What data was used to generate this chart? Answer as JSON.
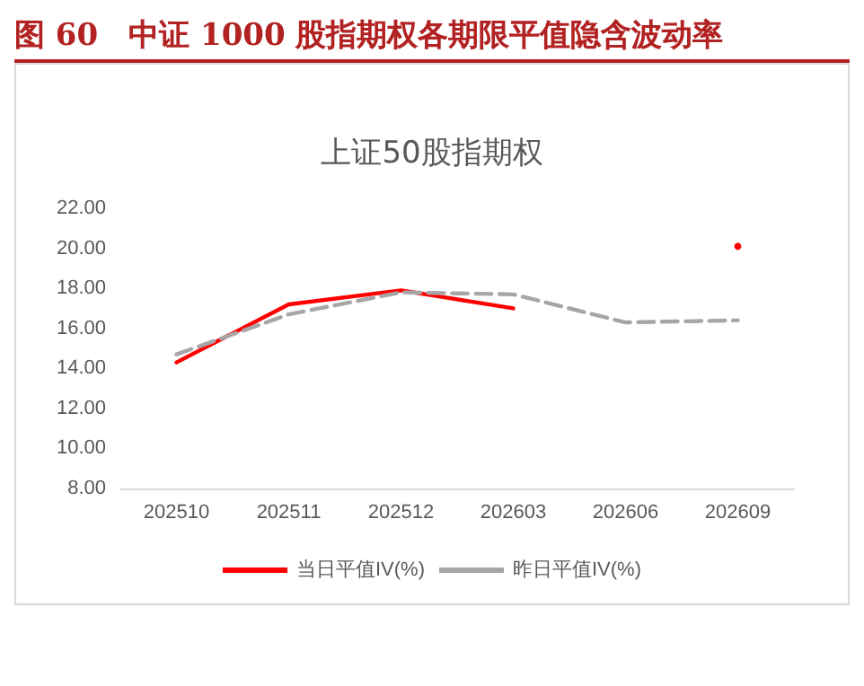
{
  "chart_data": {
    "type": "line",
    "title": "图 60　中证 1000 股指期权各期限平值隐含波动率",
    "subtitle": "上证50股指期权",
    "categories": [
      "202510",
      "202511",
      "202512",
      "202603",
      "202606",
      "202609"
    ],
    "series": [
      {
        "name": "当日平值IV(%)",
        "color": "#ff0000",
        "line_style": "solid",
        "values": [
          14.3,
          17.2,
          17.9,
          17.0,
          null,
          20.1
        ]
      },
      {
        "name": "昨日平值IV(%)",
        "color": "#a6a6a6",
        "line_style": "dashed",
        "values": [
          14.7,
          16.7,
          17.8,
          17.7,
          16.3,
          16.4
        ]
      }
    ],
    "ylim": [
      8,
      22
    ],
    "yticks": [
      {
        "value": 8,
        "label": "8.00"
      },
      {
        "value": 10,
        "label": "10.00"
      },
      {
        "value": 12,
        "label": "12.00"
      },
      {
        "value": 14,
        "label": "14.00"
      },
      {
        "value": 16,
        "label": "16.00"
      },
      {
        "value": 18,
        "label": "18.00"
      },
      {
        "value": 20,
        "label": "20.00"
      },
      {
        "value": 22,
        "label": "22.00"
      }
    ],
    "grid": false,
    "legend": "bottom",
    "marker": "none"
  }
}
